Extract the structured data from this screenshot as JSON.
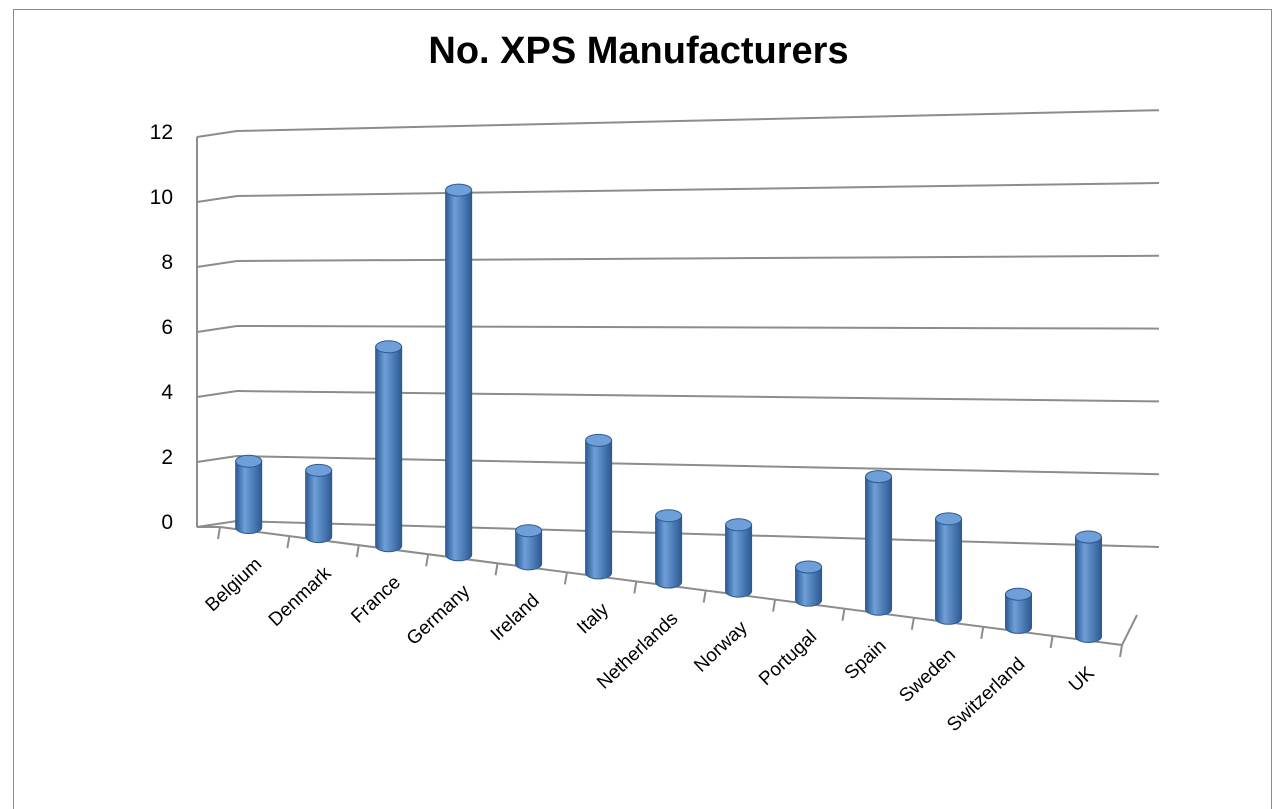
{
  "chart_data": {
    "type": "bar",
    "style": "3d-cylinder",
    "title": "No. XPS Manufacturers",
    "xlabel": "",
    "ylabel": "",
    "categories": [
      "Belgium",
      "Denmark",
      "France",
      "Germany",
      "Ireland",
      "Italy",
      "Netherlands",
      "Norway",
      "Portugal",
      "Spain",
      "Sweden",
      "Switzerland",
      "UK"
    ],
    "values": [
      2,
      2,
      6,
      11,
      1,
      4,
      2,
      2,
      1,
      4,
      3,
      1,
      3
    ],
    "ylim": [
      0,
      12
    ],
    "yticks": [
      "0",
      "2",
      "4",
      "6",
      "8",
      "10",
      "12"
    ],
    "grid": true,
    "legend": "none",
    "bar_color": "#4a7ebb",
    "bar_color_light": "#6f9fd8",
    "bar_color_dark": "#2c5a94",
    "grid_color": "#8c8c8c"
  }
}
